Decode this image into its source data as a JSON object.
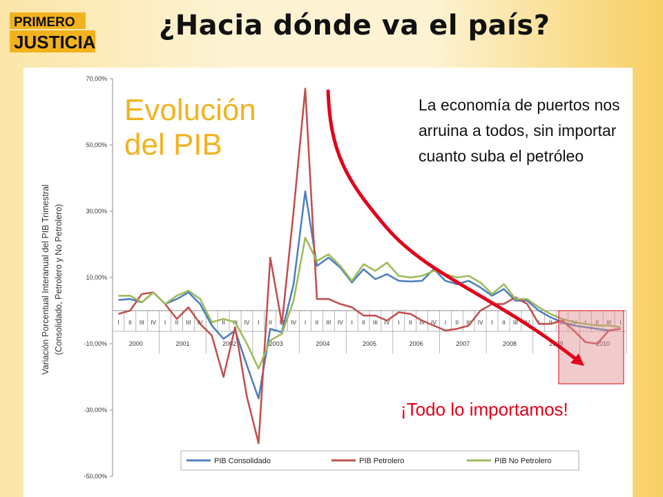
{
  "header": {
    "logo_top": "PRIMERO",
    "logo_bottom": "JUSTICIA",
    "title": "¿Hacia dónde va el país?"
  },
  "colors": {
    "consolidado": "#4f7fbf",
    "petrolero": "#c0504d",
    "no_petrolero": "#9bbb59",
    "accent_red": "#e2001a",
    "accent_yellow": "#f2b21f"
  },
  "annotations": {
    "evolucion_line1": "Evolución",
    "evolucion_line2": "del PIB",
    "note": "La economía de puertos nos arruina a todos, sin importar cuanto suba el petróleo",
    "cta": "¡Todo lo importamos!"
  },
  "chart_data": {
    "type": "line",
    "ylabel_line1": "Variación Porcentual Interanual del PIB Trimestral",
    "ylabel_line2": "(Consolidado, Petrolero y No Petrolero)",
    "ylim": [
      -50,
      70
    ],
    "yticks": [
      "70,00%",
      "50,00%",
      "30,00%",
      "10,00%",
      "-10,00%",
      "-30,00%",
      "-50,00%"
    ],
    "ytick_values": [
      70,
      50,
      30,
      10,
      -10,
      -30,
      -50
    ],
    "quarters": [
      "I",
      "II",
      "III",
      "IV",
      "I",
      "II",
      "III",
      "IV",
      "I",
      "II",
      "III",
      "IV",
      "I",
      "II",
      "III",
      "IV",
      "I",
      "II",
      "III",
      "IV",
      "I",
      "II",
      "III",
      "IV",
      "I",
      "II",
      "III",
      "IV",
      "I",
      "II",
      "III",
      "IV",
      "I",
      "II",
      "III",
      "IV",
      "I",
      "II",
      "III",
      "IV",
      "I",
      "II",
      "III",
      "I"
    ],
    "years": [
      "2000",
      "2001",
      "2002",
      "2003",
      "2004",
      "2005",
      "2006",
      "2007",
      "2008",
      "2009",
      "2010"
    ],
    "legend": [
      "PIB Consolidado",
      "PIB Petrolero",
      "PIB No Petrolero"
    ],
    "series": [
      {
        "name": "PIB Consolidado",
        "values": [
          3.2,
          3.5,
          2.5,
          5.5,
          2.0,
          3.5,
          5.5,
          2.0,
          -4.5,
          -8.5,
          -6.0,
          -16.5,
          -26.5,
          -5.5,
          -6.5,
          8.0,
          36.0,
          13.5,
          16.0,
          13.0,
          8.5,
          12.5,
          9.5,
          11.0,
          9.0,
          8.8,
          9.0,
          12.5,
          9.0,
          8.0,
          9.0,
          7.0,
          4.5,
          6.5,
          3.0,
          3.0,
          0.0,
          -2.0,
          -3.5,
          -4.5,
          -5.0,
          -5.5,
          -6.0,
          -5.5
        ]
      },
      {
        "name": "PIB Petrolero",
        "values": [
          -1.0,
          0.0,
          5.0,
          5.5,
          2.0,
          -2.5,
          1.0,
          -4.0,
          -7.5,
          -20.0,
          -5.0,
          -26.0,
          -40.0,
          16.0,
          -4.0,
          30.0,
          67.0,
          3.5,
          3.5,
          2.0,
          1.0,
          -1.5,
          -1.5,
          -3.0,
          -0.5,
          -1.0,
          -3.0,
          -4.5,
          -6.0,
          -5.5,
          -4.5,
          0.0,
          2.0,
          2.0,
          4.0,
          2.0,
          -4.0,
          -4.0,
          -3.0,
          -6.0,
          -9.5,
          -10.0,
          -6.0,
          -5.5
        ]
      },
      {
        "name": "PIB No Petrolero",
        "values": [
          4.5,
          4.5,
          2.5,
          5.5,
          2.0,
          4.5,
          6.0,
          3.5,
          -3.5,
          -2.5,
          -3.5,
          -10.0,
          -17.5,
          -9.0,
          -7.0,
          3.0,
          22.0,
          15.0,
          17.0,
          13.5,
          9.0,
          14.0,
          12.0,
          14.5,
          10.5,
          10.0,
          10.5,
          12.0,
          11.0,
          10.0,
          10.5,
          8.5,
          5.0,
          8.0,
          3.5,
          3.5,
          1.0,
          -1.0,
          -2.5,
          -3.5,
          -4.0,
          -4.5,
          -4.5,
          -5.0
        ]
      }
    ]
  }
}
